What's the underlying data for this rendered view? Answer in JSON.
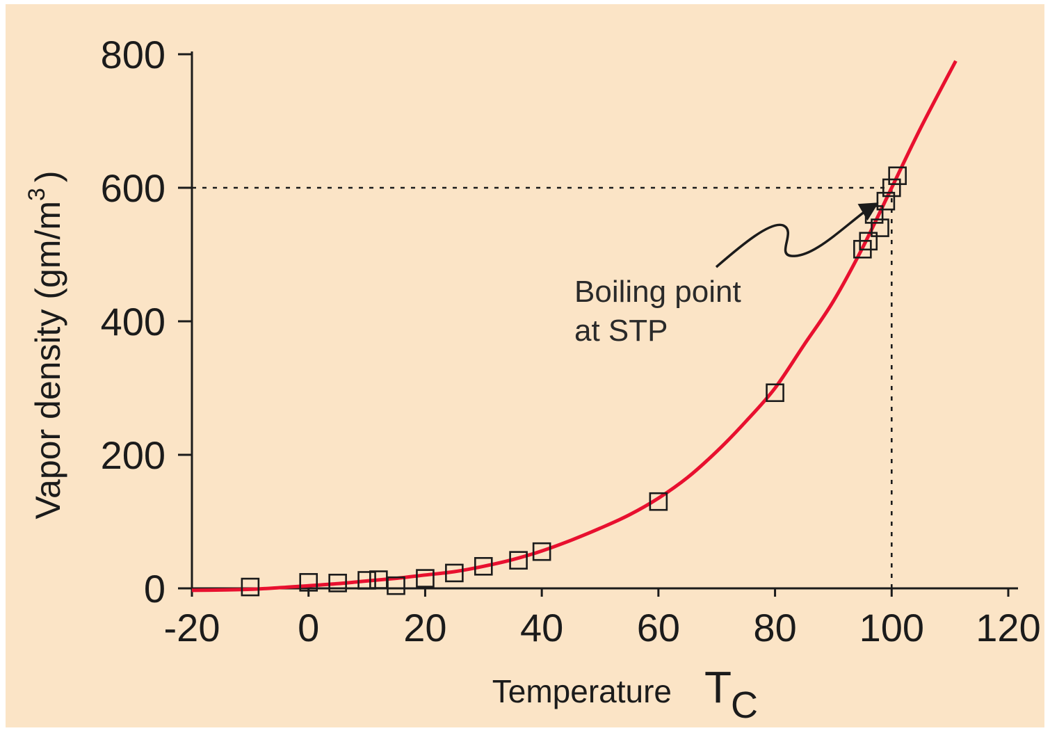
{
  "colors": {
    "background": "#fbe4c6",
    "fit_curve": "#e8102f",
    "markers": "#1b1b1b"
  },
  "chart_data": {
    "type": "scatter",
    "xlabel": "Temperature",
    "xlabel_symbol": "T",
    "xlabel_symbol_subscript": "C",
    "ylabel": "Vapor density (gm/m",
    "ylabel_superscript": "3",
    "ylabel_close": ")",
    "xlim": [
      -20,
      120
    ],
    "ylim": [
      0,
      800
    ],
    "x_ticks": [
      -20,
      0,
      20,
      40,
      60,
      80,
      100,
      120
    ],
    "y_ticks": [
      0,
      200,
      400,
      600,
      800
    ],
    "grid": false,
    "series": [
      {
        "marker": "square",
        "x": [
          -10,
          0,
          5,
          10,
          12,
          15,
          20,
          25,
          30,
          36,
          40,
          60,
          80,
          95,
          96,
          97,
          98,
          99,
          100,
          101
        ],
        "y": [
          2,
          9,
          8,
          12,
          13,
          4,
          15,
          23,
          33,
          42,
          55,
          130,
          293,
          508,
          520,
          560,
          540,
          580,
          600,
          618
        ]
      },
      {
        "style": "line",
        "x": [
          -20,
          -15,
          -10,
          -5,
          0,
          5,
          10,
          15,
          20,
          25,
          30,
          35,
          40,
          45,
          50,
          55,
          60,
          65,
          70,
          75,
          80,
          85,
          90,
          95,
          100,
          105,
          111
        ],
        "y": [
          -3,
          -2.5,
          -1.5,
          1,
          4,
          7,
          11,
          15,
          20,
          25,
          33,
          43,
          56,
          72,
          90,
          110,
          135,
          166,
          205,
          250,
          300,
          365,
          430,
          510,
          600,
          690,
          790
        ]
      }
    ],
    "reference_lines": [
      {
        "axis": "y",
        "value": 600,
        "from_x": -20,
        "to_x": 100,
        "style": "dotted"
      },
      {
        "axis": "x",
        "value": 100,
        "from_y": 0,
        "to_y": 600,
        "style": "dotted"
      }
    ],
    "annotations": [
      {
        "lines": [
          "Boiling point",
          "at STP"
        ],
        "points_to": {
          "x": 98,
          "y": 580
        }
      }
    ]
  }
}
